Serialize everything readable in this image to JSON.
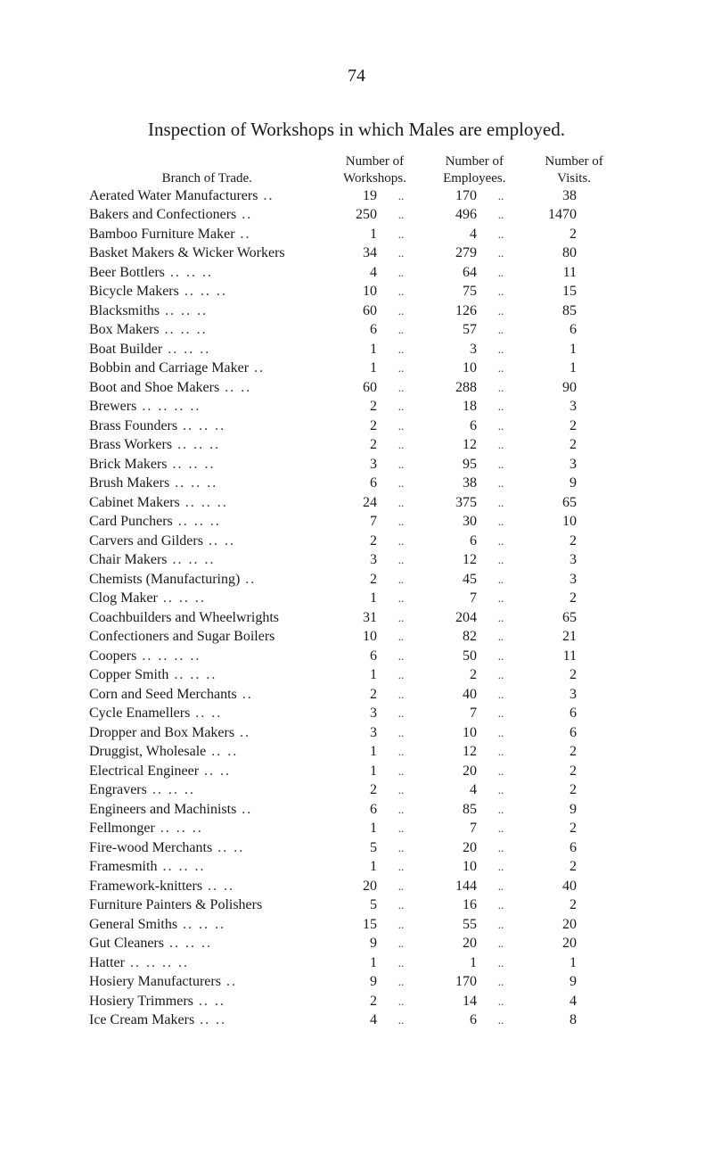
{
  "page_number": "74",
  "heading": "Inspection of Workshops in which Males are employed.",
  "columns": {
    "trade": "Branch of Trade.",
    "workshops": {
      "l1": "Number of",
      "l2": "Workshops."
    },
    "employees": {
      "l1": "Number of",
      "l2": "Employees."
    },
    "visits": {
      "l1": "Number of",
      "l2": "Visits."
    }
  },
  "table": {
    "rows": [
      {
        "trade": "Aerated Water Manufacturers",
        "lead": "..",
        "workshops": "19",
        "employees": "170",
        "visits": "38"
      },
      {
        "trade": "Bakers and Confectioners",
        "lead": "..",
        "workshops": "250",
        "employees": "496",
        "visits": "1470"
      },
      {
        "trade": "Bamboo Furniture Maker",
        "lead": "..",
        "workshops": "1",
        "employees": "4",
        "visits": "2"
      },
      {
        "trade": "Basket Makers & Wicker Workers",
        "lead": "",
        "workshops": "34",
        "employees": "279",
        "visits": "80"
      },
      {
        "trade": "Beer Bottlers",
        "lead": "..    ..    ..",
        "workshops": "4",
        "employees": "64",
        "visits": "11"
      },
      {
        "trade": "Bicycle Makers",
        "lead": "..    ..    ..",
        "workshops": "10",
        "employees": "75",
        "visits": "15"
      },
      {
        "trade": "Blacksmiths",
        "lead": "..    ..    ..",
        "workshops": "60",
        "employees": "126",
        "visits": "85"
      },
      {
        "trade": "Box Makers",
        "lead": "..    ..    ..",
        "workshops": "6",
        "employees": "57",
        "visits": "6"
      },
      {
        "trade": "Boat Builder",
        "lead": "..    ..    ..",
        "workshops": "1",
        "employees": "3",
        "visits": "1"
      },
      {
        "trade": "Bobbin and Carriage Maker",
        "lead": "..",
        "workshops": "1",
        "employees": "10",
        "visits": "1"
      },
      {
        "trade": "Boot and Shoe Makers",
        "lead": "..    ..",
        "workshops": "60",
        "employees": "288",
        "visits": "90"
      },
      {
        "trade": "Brewers",
        "lead": "..    ..    ..    ..",
        "workshops": "2",
        "employees": "18",
        "visits": "3"
      },
      {
        "trade": "Brass Founders",
        "lead": "..    ..    ..",
        "workshops": "2",
        "employees": "6",
        "visits": "2"
      },
      {
        "trade": "Brass Workers",
        "lead": "..    ..    ..",
        "workshops": "2",
        "employees": "12",
        "visits": "2"
      },
      {
        "trade": "Brick Makers",
        "lead": "..    ..    ..",
        "workshops": "3",
        "employees": "95",
        "visits": "3"
      },
      {
        "trade": "Brush Makers",
        "lead": "..    ..    ..",
        "workshops": "6",
        "employees": "38",
        "visits": "9"
      },
      {
        "trade": "Cabinet Makers",
        "lead": "..    ..    ..",
        "workshops": "24",
        "employees": "375",
        "visits": "65"
      },
      {
        "trade": "Card Punchers",
        "lead": "..    ..    ..",
        "workshops": "7",
        "employees": "30",
        "visits": "10"
      },
      {
        "trade": "Carvers and Gilders",
        "lead": "..    ..",
        "workshops": "2",
        "employees": "6",
        "visits": "2"
      },
      {
        "trade": "Chair Makers",
        "lead": "..    ..    ..",
        "workshops": "3",
        "employees": "12",
        "visits": "3"
      },
      {
        "trade": "Chemists (Manufacturing)",
        "lead": "..",
        "workshops": "2",
        "employees": "45",
        "visits": "3"
      },
      {
        "trade": "Clog Maker",
        "lead": "..    ..    ..",
        "workshops": "1",
        "employees": "7",
        "visits": "2"
      },
      {
        "trade": "Coachbuilders and Wheelwrights",
        "lead": "",
        "workshops": "31",
        "employees": "204",
        "visits": "65"
      },
      {
        "trade": "Confectioners and Sugar Boilers",
        "lead": "",
        "workshops": "10",
        "employees": "82",
        "visits": "21"
      },
      {
        "trade": "Coopers",
        "lead": "..    ..    ..    ..",
        "workshops": "6",
        "employees": "50",
        "visits": "11"
      },
      {
        "trade": "Copper Smith",
        "lead": "..    ..    ..",
        "workshops": "1",
        "employees": "2",
        "visits": "2"
      },
      {
        "trade": "Corn and Seed Merchants",
        "lead": "..",
        "workshops": "2",
        "employees": "40",
        "visits": "3"
      },
      {
        "trade": "Cycle Enamellers",
        "lead": "..    ..",
        "workshops": "3",
        "employees": "7",
        "visits": "6"
      },
      {
        "trade": "Dropper and Box Makers",
        "lead": "..",
        "workshops": "3",
        "employees": "10",
        "visits": "6"
      },
      {
        "trade": "Druggist, Wholesale",
        "lead": "..    ..",
        "workshops": "1",
        "employees": "12",
        "visits": "2"
      },
      {
        "trade": "Electrical Engineer",
        "lead": "..    ..",
        "workshops": "1",
        "employees": "20",
        "visits": "2"
      },
      {
        "trade": "Engravers",
        "lead": "..    ..    ..",
        "workshops": "2",
        "employees": "4",
        "visits": "2"
      },
      {
        "trade": "Engineers and Machinists",
        "lead": "..",
        "workshops": "6",
        "employees": "85",
        "visits": "9"
      },
      {
        "trade": "Fellmonger",
        "lead": "..    ..    ..",
        "workshops": "1",
        "employees": "7",
        "visits": "2"
      },
      {
        "trade": "Fire-wood Merchants",
        "lead": "..    ..",
        "workshops": "5",
        "employees": "20",
        "visits": "6"
      },
      {
        "trade": "Framesmith",
        "lead": "..    ..    ..",
        "workshops": "1",
        "employees": "10",
        "visits": "2"
      },
      {
        "trade": "Framework-knitters",
        "lead": "..    ..",
        "workshops": "20",
        "employees": "144",
        "visits": "40"
      },
      {
        "trade": "Furniture Painters & Polishers",
        "lead": "",
        "workshops": "5",
        "employees": "16",
        "visits": "2"
      },
      {
        "trade": "General Smiths",
        "lead": "..    ..    ..",
        "workshops": "15",
        "employees": "55",
        "visits": "20"
      },
      {
        "trade": "Gut Cleaners",
        "lead": "..    ..    ..",
        "workshops": "9",
        "employees": "20",
        "visits": "20"
      },
      {
        "trade": "Hatter",
        "lead": "..    ..    ..    ..",
        "workshops": "1",
        "employees": "1",
        "visits": "1"
      },
      {
        "trade": "Hosiery Manufacturers",
        "lead": "..",
        "workshops": "9",
        "employees": "170",
        "visits": "9"
      },
      {
        "trade": "Hosiery Trimmers",
        "lead": "..    ..",
        "workshops": "2",
        "employees": "14",
        "visits": "4"
      },
      {
        "trade": "Ice Cream Makers",
        "lead": "..    ..",
        "workshops": "4",
        "employees": "6",
        "visits": "8"
      }
    ]
  },
  "colors": {
    "text": "#1a1a1a",
    "background": "#ffffff"
  }
}
